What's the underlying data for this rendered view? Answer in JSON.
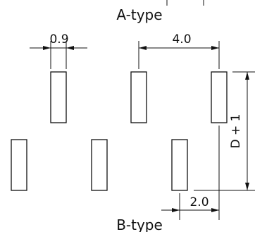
{
  "drawing": {
    "top_label": "A-type",
    "bottom_label": "B-type",
    "dim_width": "0.9",
    "dim_pitch": "4.0",
    "dim_offset": "2.0",
    "dim_row_spacing": "D + 1"
  }
}
